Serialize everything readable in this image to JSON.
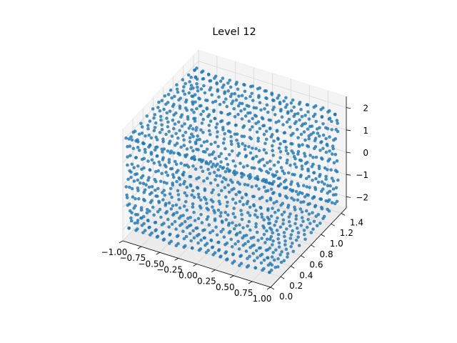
{
  "chart_data": {
    "type": "scatter",
    "projection": "3d",
    "title": "Level 12",
    "xlabel": "",
    "ylabel": "",
    "zlabel": "",
    "xlim": [
      -1.0,
      1.0
    ],
    "ylim": [
      0.0,
      1.5
    ],
    "zlim": [
      -2.5,
      2.5
    ],
    "x_ticks": [
      "−1.00",
      "−0.75",
      "−0.50",
      "−0.25",
      "0.00",
      "0.25",
      "0.50",
      "0.75",
      "1.00"
    ],
    "y_ticks": [
      "0.0",
      "0.2",
      "0.4",
      "0.6",
      "0.8",
      "1.0",
      "1.2",
      "1.4"
    ],
    "z_ticks": [
      "−2",
      "−1",
      "0",
      "1",
      "2"
    ],
    "grid": true,
    "marker_color": "#1f77b4",
    "series": [
      {
        "shape": "rounded box sampled on a grid (approximate)",
        "x_range": [
          -0.95,
          0.95
        ],
        "y_range": [
          0.05,
          1.35
        ],
        "z_range": [
          -2.0,
          2.0
        ],
        "samples": {
          "x_slices": 21,
          "y_rows": 12,
          "z_rows": 12
        }
      }
    ]
  }
}
